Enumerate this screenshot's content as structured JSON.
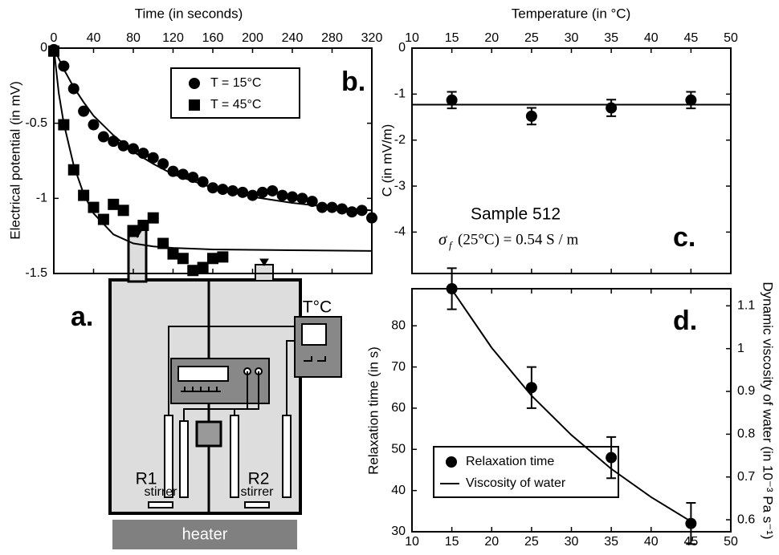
{
  "chart_data": [
    {
      "type": "scatter",
      "x_label": "Time (in seconds)",
      "y_label": "Electrical potential (in mV)",
      "panel_label": "b.",
      "xlim": [
        0,
        320
      ],
      "xticks": [
        0,
        40,
        80,
        120,
        160,
        200,
        240,
        280,
        320
      ],
      "ylim": [
        -1.5,
        0
      ],
      "yticks": [
        0,
        -0.5,
        -1,
        -1.5
      ],
      "series": [
        {
          "name": "T = 15°C",
          "marker": "circle",
          "color": "#000000",
          "x": [
            0,
            10,
            20,
            30,
            40,
            50,
            60,
            70,
            80,
            90,
            100,
            110,
            120,
            130,
            140,
            150,
            160,
            170,
            180,
            190,
            200,
            210,
            220,
            230,
            240,
            250,
            260,
            270,
            280,
            290,
            300,
            310,
            320
          ],
          "values": [
            -0.01,
            -0.12,
            -0.27,
            -0.42,
            -0.51,
            -0.59,
            -0.62,
            -0.65,
            -0.67,
            -0.7,
            -0.73,
            -0.77,
            -0.82,
            -0.84,
            -0.86,
            -0.89,
            -0.93,
            -0.94,
            -0.95,
            -0.96,
            -0.98,
            -0.96,
            -0.95,
            -0.98,
            -0.99,
            -1.0,
            -1.02,
            -1.06,
            -1.06,
            -1.07,
            -1.09,
            -1.08,
            -1.13
          ]
        },
        {
          "name": "T = 45°C",
          "marker": "square",
          "color": "#000000",
          "x": [
            0,
            10,
            20,
            30,
            40,
            50,
            60,
            70,
            80,
            90,
            100,
            110,
            120,
            130,
            140,
            150,
            160,
            170
          ],
          "values": [
            -0.02,
            -0.51,
            -0.81,
            -0.98,
            -1.06,
            -1.14,
            -1.04,
            -1.08,
            -1.22,
            -1.18,
            -1.13,
            -1.3,
            -1.37,
            -1.4,
            -1.48,
            -1.46,
            -1.4,
            -1.39
          ]
        },
        {
          "marker": "none",
          "color": "#000000",
          "x": [
            0,
            10,
            20,
            30,
            40,
            60,
            80,
            100,
            120,
            160,
            200,
            240,
            280,
            320
          ],
          "values": [
            0,
            -0.14,
            -0.26,
            -0.36,
            -0.45,
            -0.58,
            -0.69,
            -0.77,
            -0.84,
            -0.93,
            -0.99,
            -1.03,
            -1.06,
            -1.08
          ]
        },
        {
          "marker": "none",
          "color": "#000000",
          "x": [
            0,
            5,
            10,
            20,
            30,
            40,
            60,
            80,
            100,
            120,
            160,
            240,
            320
          ],
          "values": [
            0,
            -0.3,
            -0.5,
            -0.78,
            -0.97,
            -1.1,
            -1.24,
            -1.3,
            -1.32,
            -1.33,
            -1.34,
            -1.345,
            -1.35
          ]
        }
      ]
    },
    {
      "type": "scatter",
      "x_label": "Temperature (in °C)",
      "y_label": "C (in mV/m)",
      "panel_label": "c.",
      "annotation": {
        "sample": "Sample 512",
        "symbol": "σ",
        "subscript": "f",
        "formula": "(25°C) = 0.54  S / m"
      },
      "xlim": [
        10,
        50
      ],
      "xticks": [
        10,
        15,
        20,
        25,
        30,
        35,
        40,
        45,
        50
      ],
      "ylim": [
        -4.9,
        0
      ],
      "yticks": [
        0,
        -1,
        -2,
        -3,
        -4
      ],
      "reference_line": -1.23,
      "series": [
        {
          "marker": "circle",
          "color": "#000000",
          "x": [
            15,
            25,
            35,
            45
          ],
          "values": [
            -1.13,
            -1.48,
            -1.3,
            -1.13
          ],
          "errors": [
            0.18,
            0.18,
            0.18,
            0.18
          ]
        }
      ]
    },
    {
      "type": "scatter",
      "y_label": "Relaxation time (in s)",
      "y2_label": "Dynamic viscosity of water (in 10⁻³ Pa s⁻¹)",
      "panel_label": "d.",
      "xlim": [
        10,
        50
      ],
      "xticks": [
        10,
        15,
        20,
        25,
        30,
        35,
        40,
        45,
        50
      ],
      "ylim": [
        30,
        89
      ],
      "yticks": [
        30,
        40,
        50,
        60,
        70,
        80
      ],
      "y2lim": [
        0.572,
        1.14
      ],
      "y2ticks": [
        0.6,
        0.7,
        0.8,
        0.9,
        1,
        1.1
      ],
      "series": [
        {
          "name": "Relaxation time",
          "marker": "circle",
          "color": "#000000",
          "x": [
            15,
            25,
            35,
            45
          ],
          "values": [
            89,
            65,
            48,
            32
          ],
          "errors": [
            5,
            5,
            5,
            5
          ]
        },
        {
          "name": "Viscosity of water",
          "marker": "none",
          "axis": "y2",
          "color": "#000000",
          "x": [
            15,
            20,
            25,
            30,
            35,
            40,
            45
          ],
          "values": [
            1.138,
            1.002,
            0.89,
            0.798,
            0.719,
            0.653,
            0.596
          ]
        }
      ]
    }
  ],
  "diagram": {
    "panel_label": "a.",
    "thermometer": "T°C",
    "left_reservoir": "R1",
    "right_reservoir": "R2",
    "left_stirrer": "stirrer",
    "right_stirrer": "stirrer",
    "heater": "heater"
  }
}
